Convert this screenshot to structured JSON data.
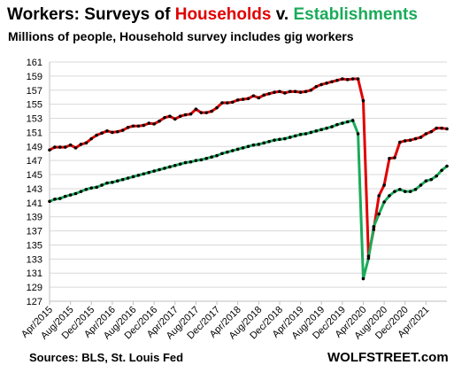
{
  "header": {
    "title_part1": "Workers: Surveys of ",
    "title_households": "Households",
    "title_part2": " v. ",
    "title_establishments": "Establishments",
    "subtitle": "Millions of people, Household survey includes gig workers"
  },
  "footer": {
    "source": "Sources: BLS, St. Louis Fed",
    "brand": "WOLFSTREET.com"
  },
  "chart_data": {
    "type": "line",
    "title": "Workers: Surveys of Households v. Establishments",
    "subtitle": "Millions of people, Household survey includes gig workers",
    "ylim": [
      127,
      161
    ],
    "yticks": [
      127,
      129,
      131,
      133,
      135,
      137,
      139,
      141,
      143,
      145,
      147,
      149,
      151,
      153,
      155,
      157,
      159,
      161
    ],
    "grid": true,
    "xlabels": [
      "Apr/2015",
      "Aug/2015",
      "Dec/2015",
      "Apr/2016",
      "Aug/2016",
      "Dec/2016",
      "Apr/2017",
      "Aug/2017",
      "Dec/2017",
      "Apr/2018",
      "Aug/2018",
      "Dec/2018",
      "Apr/2019",
      "Aug/2019",
      "Dec/2019",
      "Apr/2020",
      "Aug/2020",
      "Dec/2020",
      "Apr/2021"
    ],
    "colors": {
      "households": "#e00000",
      "establishments": "#1aab5a",
      "points": "#000000"
    },
    "series": [
      {
        "key": "households",
        "values": [
          148.5,
          148.9,
          148.9,
          148.9,
          149.2,
          148.8,
          149.3,
          149.5,
          150.1,
          150.6,
          150.9,
          151.2,
          151.0,
          151.1,
          151.3,
          151.7,
          151.9,
          151.9,
          152.0,
          152.3,
          152.2,
          152.6,
          153.1,
          153.3,
          152.9,
          153.3,
          153.5,
          153.6,
          154.3,
          153.8,
          153.8,
          154.0,
          154.5,
          155.2,
          155.2,
          155.3,
          155.6,
          155.7,
          155.8,
          156.2,
          155.9,
          156.3,
          156.5,
          156.7,
          156.8,
          156.6,
          156.8,
          156.8,
          156.7,
          156.8,
          157.0,
          157.5,
          157.8,
          158.0,
          158.2,
          158.4,
          158.6,
          158.5,
          158.6,
          158.6,
          155.5,
          133.4,
          137.2,
          142.0,
          143.5,
          147.3,
          147.4,
          149.6,
          149.8,
          149.9,
          150.1,
          150.3,
          150.8,
          151.1,
          151.6,
          151.6,
          151.5
        ]
      },
      {
        "key": "establishments",
        "values": [
          141.2,
          141.5,
          141.6,
          141.9,
          142.1,
          142.3,
          142.6,
          142.9,
          143.1,
          143.2,
          143.5,
          143.8,
          143.9,
          144.1,
          144.3,
          144.5,
          144.7,
          144.9,
          145.1,
          145.3,
          145.5,
          145.7,
          145.9,
          146.1,
          146.3,
          146.5,
          146.7,
          146.8,
          147.0,
          147.1,
          147.3,
          147.5,
          147.7,
          148.0,
          148.2,
          148.4,
          148.6,
          148.8,
          149.0,
          149.2,
          149.3,
          149.5,
          149.7,
          149.9,
          150.0,
          150.1,
          150.3,
          150.5,
          150.7,
          150.8,
          151.0,
          151.2,
          151.4,
          151.6,
          151.8,
          152.1,
          152.3,
          152.5,
          152.7,
          150.8,
          130.2,
          133.1,
          137.6,
          139.4,
          141.1,
          142.0,
          142.6,
          142.9,
          142.6,
          142.6,
          142.9,
          143.5,
          144.1,
          144.3,
          144.8,
          145.6,
          146.2
        ]
      }
    ]
  }
}
